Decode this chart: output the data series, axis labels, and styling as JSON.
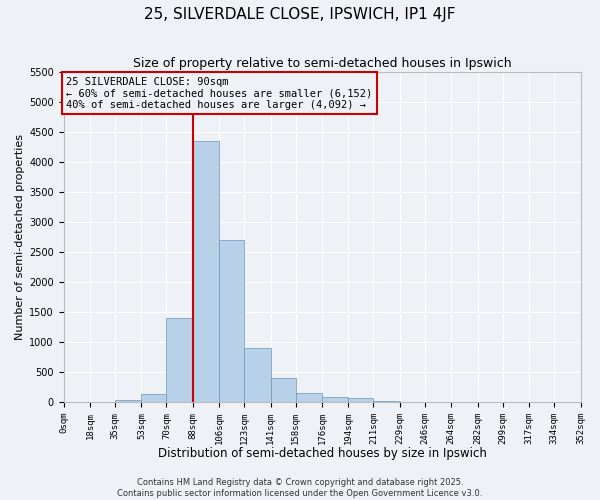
{
  "title": "25, SILVERDALE CLOSE, IPSWICH, IP1 4JF",
  "subtitle": "Size of property relative to semi-detached houses in Ipswich",
  "xlabel": "Distribution of semi-detached houses by size in Ipswich",
  "ylabel": "Number of semi-detached properties",
  "bin_edges": [
    0,
    18,
    35,
    53,
    70,
    88,
    106,
    123,
    141,
    158,
    176,
    194,
    211,
    229,
    246,
    264,
    282,
    299,
    317,
    334,
    352
  ],
  "bin_labels": [
    "0sqm",
    "18sqm",
    "35sqm",
    "53sqm",
    "70sqm",
    "88sqm",
    "106sqm",
    "123sqm",
    "141sqm",
    "158sqm",
    "176sqm",
    "194sqm",
    "211sqm",
    "229sqm",
    "246sqm",
    "264sqm",
    "282sqm",
    "299sqm",
    "317sqm",
    "334sqm",
    "352sqm"
  ],
  "bar_heights": [
    5,
    5,
    30,
    140,
    1400,
    4350,
    2700,
    900,
    400,
    150,
    90,
    70,
    20,
    5,
    5,
    0,
    0,
    0,
    0,
    0
  ],
  "bar_color": "#b8d0e8",
  "bar_edge_color": "#6699bb",
  "vline_color": "#cc0000",
  "vline_x": 88,
  "annotation_title": "25 SILVERDALE CLOSE: 90sqm",
  "annotation_line1": "← 60% of semi-detached houses are smaller (6,152)",
  "annotation_line2": "40% of semi-detached houses are larger (4,092) →",
  "box_edge_color": "#cc0000",
  "ylim": [
    0,
    5500
  ],
  "yticks": [
    0,
    500,
    1000,
    1500,
    2000,
    2500,
    3000,
    3500,
    4000,
    4500,
    5000,
    5500
  ],
  "footer_line1": "Contains HM Land Registry data © Crown copyright and database right 2025.",
  "footer_line2": "Contains public sector information licensed under the Open Government Licence v3.0.",
  "bg_color": "#eef2f7",
  "grid_color": "#ffffff",
  "title_fontsize": 11,
  "subtitle_fontsize": 9,
  "axis_label_fontsize": 8,
  "tick_fontsize": 6.5,
  "annotation_fontsize": 7.5,
  "footer_fontsize": 6
}
